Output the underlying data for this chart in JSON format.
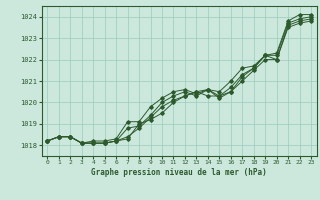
{
  "background_color": "#cce8dd",
  "grid_color": "#99ccbb",
  "line_color": "#2d5a2d",
  "title": "Graphe pression niveau de la mer (hPa)",
  "ylim": [
    1017.5,
    1024.5
  ],
  "xlim": [
    -0.5,
    23.5
  ],
  "yticks": [
    1018,
    1019,
    1020,
    1021,
    1022,
    1023,
    1024
  ],
  "xticks": [
    0,
    1,
    2,
    3,
    4,
    5,
    6,
    7,
    8,
    9,
    10,
    11,
    12,
    13,
    14,
    15,
    16,
    17,
    18,
    19,
    20,
    21,
    22,
    23
  ],
  "series": [
    [
      1018.2,
      1018.4,
      1018.4,
      1018.1,
      1018.1,
      1018.1,
      1018.2,
      1018.3,
      1019.0,
      1019.2,
      1019.5,
      1020.0,
      1020.3,
      1020.5,
      1020.3,
      1020.3,
      1020.5,
      1021.0,
      1021.5,
      1022.0,
      1022.0,
      1023.5,
      1023.7,
      1023.8
    ],
    [
      1018.2,
      1018.4,
      1018.4,
      1018.1,
      1018.1,
      1018.1,
      1018.2,
      1018.4,
      1018.8,
      1019.3,
      1019.8,
      1020.1,
      1020.3,
      1020.5,
      1020.6,
      1020.2,
      1020.5,
      1021.2,
      1021.6,
      1022.2,
      1022.0,
      1023.6,
      1023.8,
      1023.9
    ],
    [
      1018.2,
      1018.4,
      1018.4,
      1018.1,
      1018.1,
      1018.1,
      1018.2,
      1018.8,
      1018.9,
      1019.4,
      1020.0,
      1020.3,
      1020.5,
      1020.3,
      1020.6,
      1020.3,
      1020.7,
      1021.3,
      1021.6,
      1022.2,
      1022.2,
      1023.7,
      1023.9,
      1024.0
    ],
    [
      1018.2,
      1018.4,
      1018.4,
      1018.1,
      1018.2,
      1018.2,
      1018.3,
      1019.1,
      1019.1,
      1019.8,
      1020.2,
      1020.5,
      1020.6,
      1020.4,
      1020.6,
      1020.5,
      1021.0,
      1021.6,
      1021.7,
      1022.2,
      1022.3,
      1023.8,
      1024.1,
      1024.1
    ]
  ]
}
